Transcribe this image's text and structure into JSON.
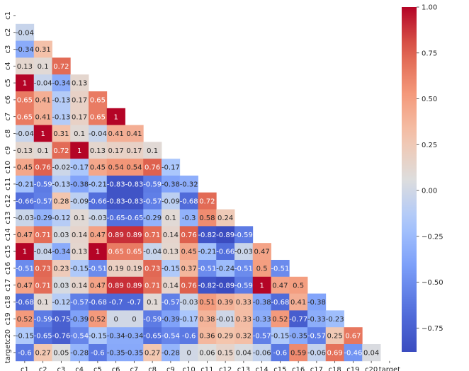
{
  "chart_data": {
    "type": "heatmap",
    "title": "",
    "xlabel": "",
    "ylabel": "",
    "variables": [
      "c1",
      "c2",
      "c3",
      "c4",
      "c5",
      "c6",
      "c7",
      "c8",
      "c9",
      "c10",
      "c11",
      "c12",
      "c13",
      "c14",
      "c15",
      "c16",
      "c17",
      "c18",
      "c19",
      "c20",
      "target"
    ],
    "mask": "upper-triangle-including-diagonal",
    "lower_values": [
      [],
      [
        "-0.04"
      ],
      [
        "-0.34",
        "0.31"
      ],
      [
        "0.13",
        "0.1",
        "0.72"
      ],
      [
        "1",
        "-0.04",
        "-0.34",
        "0.13"
      ],
      [
        "0.65",
        "0.41",
        "-0.13",
        "0.17",
        "0.65"
      ],
      [
        "0.65",
        "0.41",
        "-0.13",
        "0.17",
        "0.65",
        "1"
      ],
      [
        "-0.04",
        "1",
        "0.31",
        "0.1",
        "-0.04",
        "0.41",
        "0.41"
      ],
      [
        "0.13",
        "0.1",
        "0.72",
        "1",
        "0.13",
        "0.17",
        "0.17",
        "0.1"
      ],
      [
        "0.45",
        "0.76",
        "-0.02",
        "-0.17",
        "0.45",
        "0.54",
        "0.54",
        "0.76",
        "-0.17"
      ],
      [
        "-0.21",
        "-0.59",
        "-0.13",
        "-0.38",
        "-0.21",
        "-0.83",
        "-0.83",
        "-0.59",
        "-0.38",
        "-0.32"
      ],
      [
        "-0.66",
        "-0.57",
        "0.28",
        "-0.09",
        "-0.66",
        "-0.83",
        "-0.83",
        "-0.57",
        "-0.09",
        "-0.68",
        "0.72"
      ],
      [
        "-0.03",
        "-0.29",
        "-0.12",
        "0.1",
        "-0.03",
        "-0.65",
        "-0.65",
        "-0.29",
        "0.1",
        "-0.3",
        "0.58",
        "0.24"
      ],
      [
        "0.47",
        "0.71",
        "0.03",
        "0.14",
        "0.47",
        "0.89",
        "0.89",
        "0.71",
        "0.14",
        "0.76",
        "-0.82",
        "-0.89",
        "-0.59"
      ],
      [
        "1",
        "-0.04",
        "-0.34",
        "0.13",
        "1",
        "0.65",
        "0.65",
        "-0.04",
        "0.13",
        "0.45",
        "-0.21",
        "-0.66",
        "-0.03",
        "0.47"
      ],
      [
        "-0.51",
        "0.73",
        "0.23",
        "-0.15",
        "-0.51",
        "0.19",
        "0.19",
        "0.73",
        "-0.15",
        "0.37",
        "-0.51",
        "-0.24",
        "-0.51",
        "0.5",
        "-0.51"
      ],
      [
        "0.47",
        "0.71",
        "0.03",
        "0.14",
        "0.47",
        "0.89",
        "0.89",
        "0.71",
        "0.14",
        "0.76",
        "-0.82",
        "-0.89",
        "-0.59",
        "1",
        "0.47",
        "0.5"
      ],
      [
        "-0.68",
        "0.1",
        "-0.12",
        "-0.57",
        "-0.68",
        "-0.7",
        "-0.7",
        "0.1",
        "-0.57",
        "-0.03",
        "0.51",
        "0.39",
        "0.33",
        "-0.38",
        "-0.68",
        "0.41",
        "-0.38"
      ],
      [
        "0.52",
        "-0.59",
        "-0.75",
        "-0.39",
        "0.52",
        "0",
        "0",
        "-0.59",
        "-0.39",
        "-0.17",
        "0.38",
        "-0.01",
        "0.33",
        "-0.33",
        "0.52",
        "-0.77",
        "-0.33",
        "-0.23"
      ],
      [
        "-0.15",
        "-0.65",
        "-0.76",
        "-0.54",
        "-0.15",
        "-0.34",
        "-0.34",
        "-0.65",
        "-0.54",
        "-0.6",
        "0.36",
        "0.29",
        "0.32",
        "-0.57",
        "-0.15",
        "-0.35",
        "-0.57",
        "0.25",
        "0.67"
      ],
      [
        "-0.6",
        "0.27",
        "0.05",
        "-0.28",
        "-0.6",
        "-0.35",
        "-0.35",
        "0.27",
        "-0.28",
        "0",
        "0.06",
        "0.15",
        "0.04",
        "-0.06",
        "-0.6",
        "0.59",
        "-0.06",
        "0.69",
        "-0.46",
        "0.04"
      ]
    ],
    "colormap": "coolwarm",
    "color_range": [
      -0.88,
      1.0
    ],
    "colorbar": {
      "ticks": [
        1.0,
        0.75,
        0.5,
        0.25,
        0.0,
        -0.25,
        -0.5,
        -0.75
      ],
      "tick_labels": [
        "1.00",
        "0.75",
        "0.50",
        "0.25",
        "0.00",
        "−0.25",
        "−0.50",
        "−0.75"
      ],
      "placement": "right"
    },
    "grid": false
  }
}
